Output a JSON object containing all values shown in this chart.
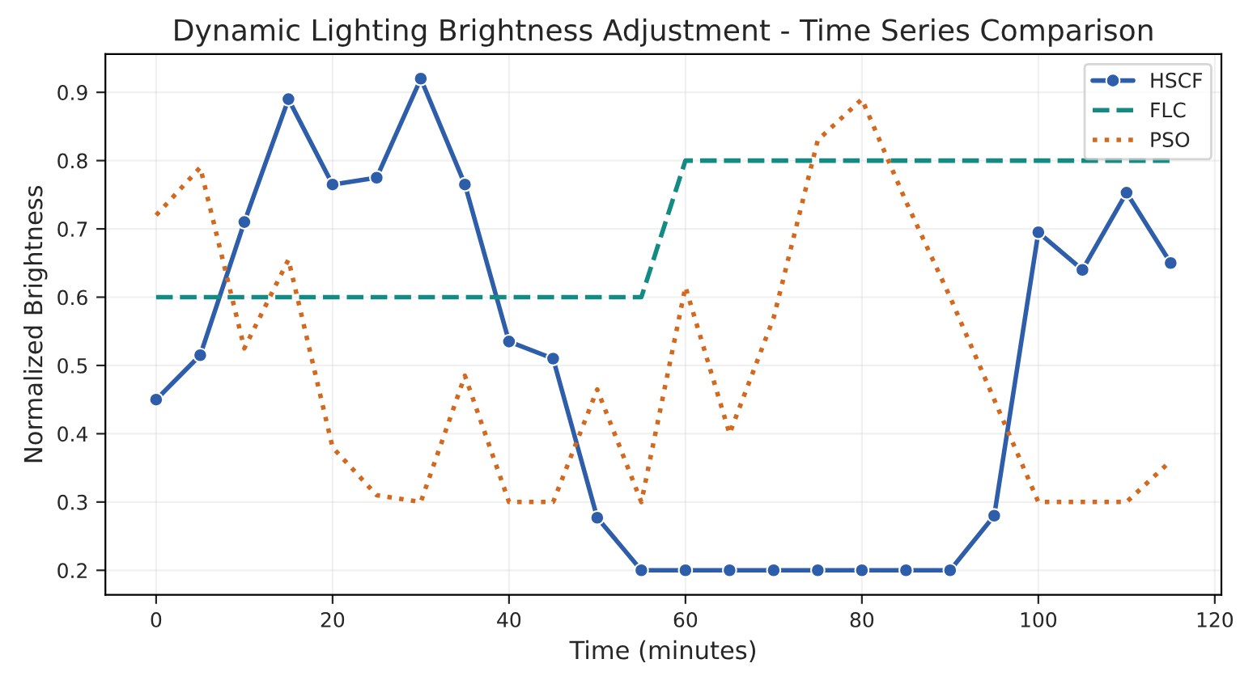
{
  "chart_data": {
    "type": "line",
    "title": "Dynamic Lighting Brightness Adjustment - Time Series Comparison",
    "xlabel": "Time (minutes)",
    "ylabel": "Normalized Brightness",
    "x": [
      0,
      5,
      10,
      15,
      20,
      25,
      30,
      35,
      40,
      45,
      50,
      55,
      60,
      65,
      70,
      75,
      80,
      85,
      90,
      95,
      100,
      105,
      110,
      115
    ],
    "series": [
      {
        "name": "HSCF",
        "color": "#2e5eaa",
        "marker": "circle",
        "line_style": "solid",
        "values": [
          0.45,
          0.515,
          0.71,
          0.89,
          0.765,
          0.775,
          0.92,
          0.765,
          0.535,
          0.51,
          0.277,
          0.2,
          0.2,
          0.2,
          0.2,
          0.2,
          0.2,
          0.2,
          0.2,
          0.28,
          0.695,
          0.64,
          0.753,
          0.65
        ]
      },
      {
        "name": "FLC",
        "color": "#138a84",
        "marker": "none",
        "line_style": "dashed",
        "values": [
          0.6,
          0.6,
          0.6,
          0.6,
          0.6,
          0.6,
          0.6,
          0.6,
          0.6,
          0.6,
          0.6,
          0.6,
          0.8,
          0.8,
          0.8,
          0.8,
          0.8,
          0.8,
          0.8,
          0.8,
          0.8,
          0.8,
          0.8,
          0.8
        ]
      },
      {
        "name": "PSO",
        "color": "#d2691e",
        "marker": "none",
        "line_style": "dotted",
        "values": [
          0.72,
          0.79,
          0.525,
          0.655,
          0.38,
          0.31,
          0.3,
          0.485,
          0.3,
          0.3,
          0.465,
          0.3,
          0.615,
          0.4,
          0.57,
          0.83,
          0.89,
          0.74,
          0.6,
          0.45,
          0.3,
          0.3,
          0.3,
          0.36
        ]
      }
    ],
    "xlim": [
      -5.75,
      120.75
    ],
    "xticks": [
      0,
      20,
      40,
      60,
      80,
      100,
      120
    ],
    "ylim": [
      0.164,
      0.956
    ],
    "yticks": [
      0.2,
      0.3,
      0.4,
      0.5,
      0.6,
      0.7,
      0.8,
      0.9
    ],
    "grid": true,
    "legend": "top right"
  }
}
